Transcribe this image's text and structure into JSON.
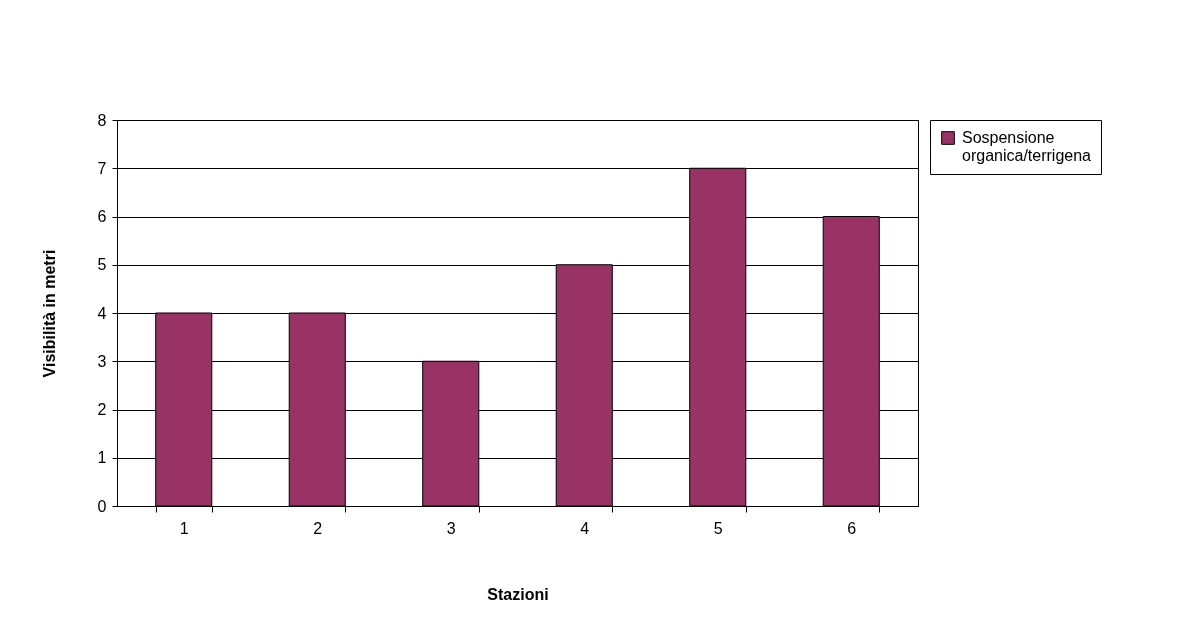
{
  "chart_data": {
    "type": "bar",
    "xlabel": "Stazioni",
    "ylabel": "Visibilità in metri",
    "categories": [
      "1",
      "2",
      "3",
      "4",
      "5",
      "6"
    ],
    "series": [
      {
        "name": "Sospensione organica/terrigena",
        "color": "#993366",
        "values": [
          4,
          4,
          3,
          5,
          7,
          6
        ]
      }
    ],
    "ylim": [
      0,
      8
    ],
    "yticks": [
      0,
      1,
      2,
      3,
      4,
      5,
      6,
      7,
      8
    ],
    "grid": "y",
    "legend": "right"
  }
}
